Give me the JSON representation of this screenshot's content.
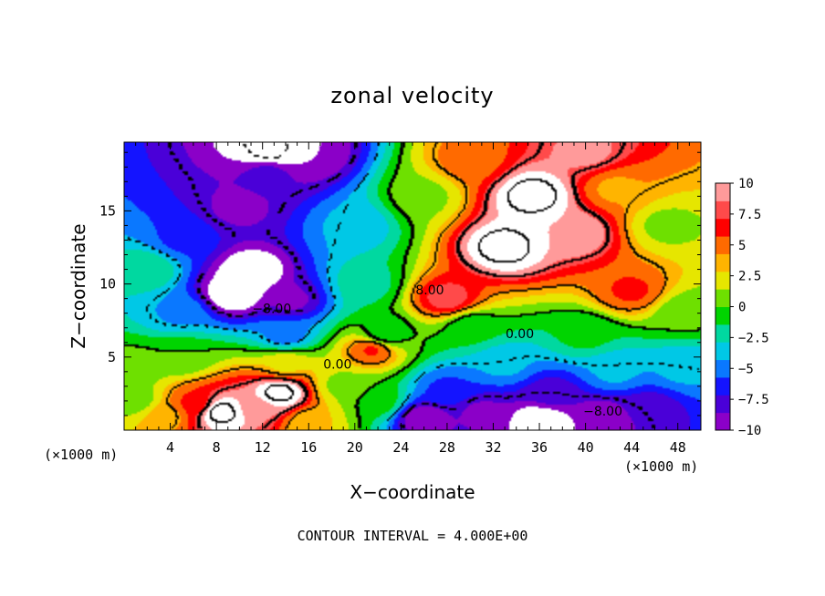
{
  "chart_data": {
    "type": "heatmap",
    "title": "zonal velocity",
    "xlabel": "X−coordinate",
    "ylabel": "Z−coordinate",
    "x_unit_left": "(×1000 m)",
    "x_unit_right": "(×1000 m)",
    "footer": "CONTOUR INTERVAL = 4.000E+00",
    "xlim": [
      0,
      50
    ],
    "ylim": [
      0,
      19.7
    ],
    "x_ticks": [
      "4",
      "8",
      "12",
      "16",
      "20",
      "24",
      "28",
      "32",
      "36",
      "40",
      "44",
      "48"
    ],
    "x_tick_values": [
      4,
      8,
      12,
      16,
      20,
      24,
      28,
      32,
      36,
      40,
      44,
      48
    ],
    "y_ticks": [
      "5",
      "10",
      "15"
    ],
    "y_tick_values": [
      5,
      10,
      15
    ],
    "colorbar": {
      "range": [
        -10,
        10
      ],
      "labels": [
        "10",
        "7.5",
        "5",
        "2.5",
        "0",
        "−2.5",
        "−5",
        "−7.5",
        "−10"
      ],
      "label_values": [
        10,
        7.5,
        5,
        2.5,
        0,
        -2.5,
        -5,
        -7.5,
        -10
      ],
      "colors": [
        "#8b00c8",
        "#4a00d8",
        "#1414ff",
        "#0a78ff",
        "#00c8e6",
        "#00d8a0",
        "#00d400",
        "#6ee000",
        "#e6e600",
        "#ffb400",
        "#ff6a00",
        "#ff0000",
        "#ff4a4a",
        "#ff9a9a"
      ]
    },
    "contour_labels": [
      {
        "text": "−8.00",
        "x": 12.8,
        "y": 8.0
      },
      {
        "text": "8.00",
        "x": 26.5,
        "y": 9.3
      },
      {
        "text": "0.00",
        "x": 34.3,
        "y": 6.3
      },
      {
        "text": "0.00",
        "x": 18.5,
        "y": 4.2
      },
      {
        "text": "−8.00",
        "x": 41.5,
        "y": 1.0
      }
    ],
    "features": [
      {
        "x": 11,
        "y": 10.8,
        "value": -12
      },
      {
        "x": 9.5,
        "y": 9.3,
        "value": -12
      },
      {
        "x": 14.5,
        "y": 8.9,
        "value": -9
      },
      {
        "x": 10,
        "y": 15.2,
        "value": -9
      },
      {
        "x": 12.5,
        "y": 17.5,
        "value": -8
      },
      {
        "x": 16,
        "y": 18.8,
        "value": -10
      },
      {
        "x": 12.8,
        "y": 19.2,
        "value": -13
      },
      {
        "x": 5,
        "y": 13,
        "value": -6
      },
      {
        "x": 4.8,
        "y": 8,
        "value": -4.5
      },
      {
        "x": 14,
        "y": 6.5,
        "value": -5
      },
      {
        "x": 20,
        "y": 14,
        "value": -4
      },
      {
        "x": 21,
        "y": 10,
        "value": -2
      },
      {
        "x": 2,
        "y": 11,
        "value": -1.5
      },
      {
        "x": 0.5,
        "y": 4,
        "value": 0.5
      },
      {
        "x": 22.5,
        "y": 6.5,
        "value": -1.5
      },
      {
        "x": 26,
        "y": 16,
        "value": 1
      },
      {
        "x": 33,
        "y": 12.5,
        "value": 13
      },
      {
        "x": 35.5,
        "y": 16,
        "value": 13
      },
      {
        "x": 39,
        "y": 13.5,
        "value": 10
      },
      {
        "x": 28,
        "y": 9,
        "value": 8
      },
      {
        "x": 30,
        "y": 18.5,
        "value": 5
      },
      {
        "x": 42.5,
        "y": 16.5,
        "value": 4
      },
      {
        "x": 47,
        "y": 14,
        "value": 1
      },
      {
        "x": 48.5,
        "y": 8,
        "value": 0.5
      },
      {
        "x": 44,
        "y": 9.5,
        "value": 6
      },
      {
        "x": 40,
        "y": 19,
        "value": 9
      },
      {
        "x": 21.5,
        "y": 5.5,
        "value": 6
      },
      {
        "x": 30,
        "y": 7,
        "value": -1
      },
      {
        "x": 40,
        "y": 6.5,
        "value": -1
      },
      {
        "x": 33,
        "y": 4.5,
        "value": -4
      },
      {
        "x": 42.5,
        "y": 4,
        "value": -4
      },
      {
        "x": 48.5,
        "y": 4.2,
        "value": -4
      },
      {
        "x": 28,
        "y": 2.8,
        "value": -6
      },
      {
        "x": 37,
        "y": 2.5,
        "value": -8
      },
      {
        "x": 31,
        "y": 1.2,
        "value": -9
      },
      {
        "x": 36,
        "y": 0.6,
        "value": -12
      },
      {
        "x": 41.5,
        "y": 0.8,
        "value": -10
      },
      {
        "x": 45.5,
        "y": 1.5,
        "value": -8
      },
      {
        "x": 26,
        "y": 0.8,
        "value": -10
      },
      {
        "x": 22,
        "y": 2,
        "value": -0.5
      },
      {
        "x": 19,
        "y": 3,
        "value": 1
      },
      {
        "x": 14,
        "y": 4.5,
        "value": 2.5
      },
      {
        "x": 13.5,
        "y": 2.5,
        "value": 13
      },
      {
        "x": 11.5,
        "y": 1.5,
        "value": 9
      },
      {
        "x": 8.5,
        "y": 1.2,
        "value": 13
      },
      {
        "x": 6,
        "y": 1.8,
        "value": 6
      },
      {
        "x": 3.5,
        "y": 1,
        "value": 3.5
      },
      {
        "x": 1,
        "y": 2,
        "value": 0.5
      },
      {
        "x": 16,
        "y": 0.5,
        "value": 3
      },
      {
        "x": 5,
        "y": 5,
        "value": 0
      }
    ]
  }
}
